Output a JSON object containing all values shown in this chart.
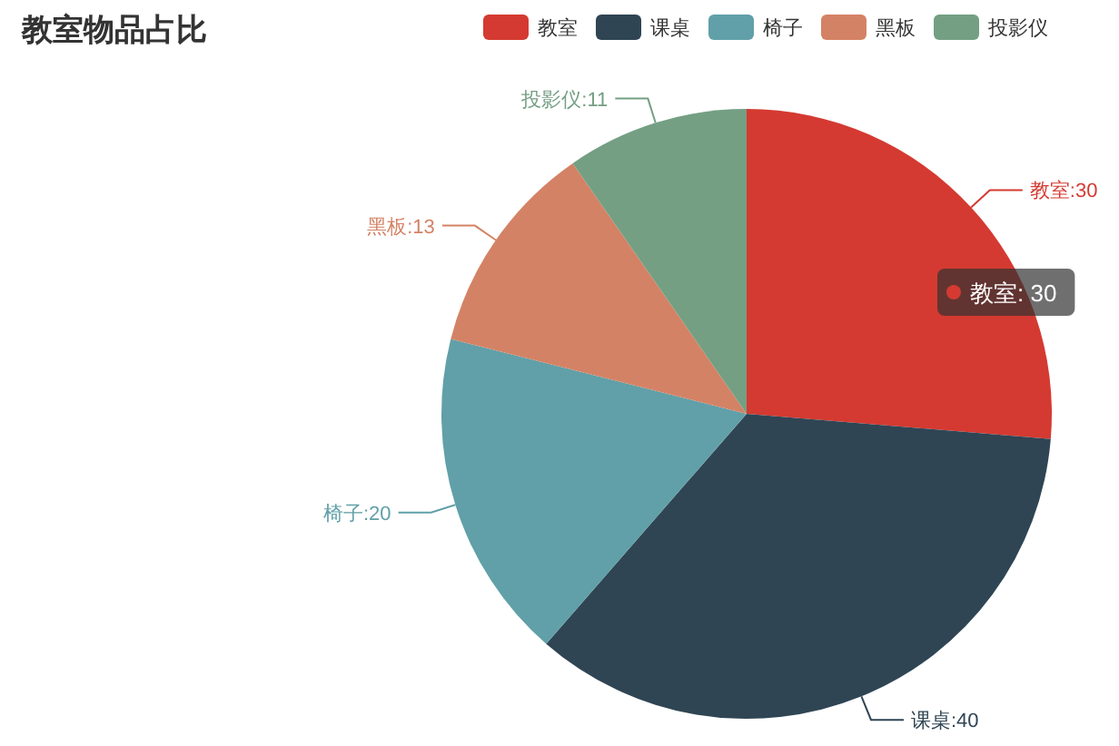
{
  "chart_data": {
    "type": "pie",
    "title": "教室物品占比",
    "categories": [
      "教室",
      "课桌",
      "椅子",
      "黑板",
      "投影仪"
    ],
    "values": [
      30,
      40,
      20,
      13,
      11
    ],
    "colors": [
      "#d43a31",
      "#2f4554",
      "#61a0a8",
      "#d48265",
      "#749f83"
    ],
    "value_labels": [
      "教室:30",
      "课桌:40",
      "椅子:20",
      "黑板:13",
      "投影仪:11"
    ],
    "legend": "top",
    "annotations": [
      "教室: 30"
    ]
  }
}
